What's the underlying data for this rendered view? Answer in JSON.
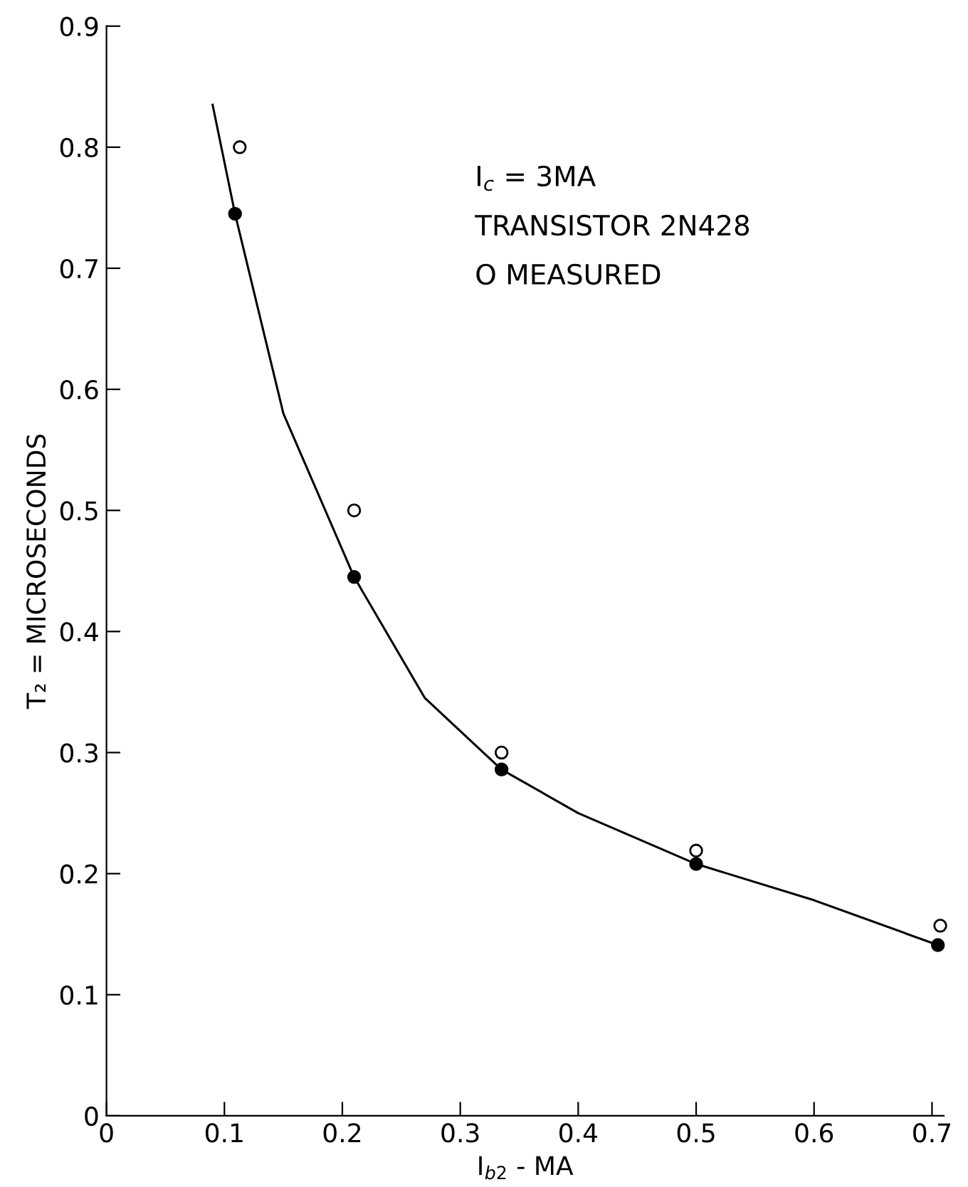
{
  "chart_data": {
    "type": "scatter",
    "xlabel": "I$_{b2}$ - MA",
    "ylabel": "T₂ = MICROSECONDS",
    "annotations": [
      "I$_{c}$ = 3MA",
      "TRANSISTOR 2N428",
      "O MEASURED"
    ],
    "series": [
      {
        "type": "line",
        "color": "#000000",
        "marker": "none",
        "line_style": "solid",
        "x": [
          0.09,
          0.109,
          0.15,
          0.21,
          0.27,
          0.335,
          0.4,
          0.5,
          0.6,
          0.705
        ],
        "values": [
          0.835,
          0.745,
          0.58,
          0.445,
          0.345,
          0.286,
          0.25,
          0.208,
          0.178,
          0.141
        ]
      },
      {
        "color": "#000000",
        "marker": "circle",
        "x": [
          0.109,
          0.21,
          0.335,
          0.5,
          0.705
        ],
        "values": [
          0.745,
          0.445,
          0.286,
          0.208,
          0.141
        ]
      },
      {
        "color": "#ffffff",
        "marker": "circle",
        "x": [
          0.113,
          0.21,
          0.335,
          0.5,
          0.707
        ],
        "values": [
          0.8,
          0.5,
          0.3,
          0.219,
          0.157
        ]
      }
    ],
    "xlim": [
      0,
      0.71
    ],
    "ylim": [
      0,
      0.9
    ],
    "xticks": [
      0,
      {
        "value": 0.1,
        "label": "0.1"
      },
      0.2,
      0.3,
      0.4,
      0.5,
      0.6,
      0.7
    ],
    "yticks": [
      0,
      {
        "value": 0.1,
        "label": "0.1"
      },
      0.2,
      0.3,
      0.4,
      0.5,
      0.6,
      0.7,
      0.8,
      0.9
    ],
    "grid": false,
    "legend": false
  }
}
